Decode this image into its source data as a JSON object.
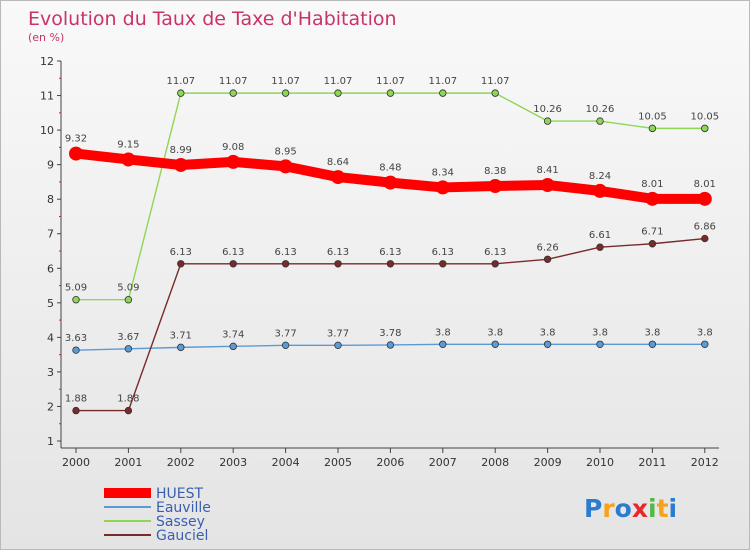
{
  "chart_data": {
    "type": "line",
    "title": "Evolution du Taux de Taxe d'Habitation",
    "subtitle": "(en %)",
    "xlabel": "",
    "ylabel": "",
    "ylim": [
      1,
      12
    ],
    "grid": false,
    "legend_position": "bottom-left",
    "categories": [
      "2000",
      "2001",
      "2002",
      "2003",
      "2004",
      "2005",
      "2006",
      "2007",
      "2008",
      "2009",
      "2010",
      "2011",
      "2012"
    ],
    "y_ticks": [
      1,
      2,
      3,
      4,
      5,
      6,
      7,
      8,
      9,
      10,
      11,
      12
    ],
    "series": [
      {
        "name": "HUEST",
        "color": "#ff0000",
        "values": [
          9.32,
          9.15,
          8.99,
          9.08,
          8.95,
          8.64,
          8.48,
          8.34,
          8.38,
          8.41,
          8.24,
          8.01,
          8.01
        ],
        "labels": [
          "9.32",
          "9.15",
          "8.99",
          "9.08",
          "8.95",
          "8.64",
          "8.48",
          "8.34",
          "8.38",
          "8.41",
          "8.24",
          "8.01",
          "8.01"
        ]
      },
      {
        "name": "Eauville",
        "color": "#5b9bd5",
        "values": [
          3.63,
          3.67,
          3.71,
          3.74,
          3.77,
          3.77,
          3.78,
          3.8,
          3.8,
          3.8,
          3.8,
          3.8,
          3.8
        ],
        "labels": [
          "3.63",
          "3.67",
          "3.71",
          "3.74",
          "3.77",
          "3.77",
          "3.78",
          "3.8",
          "3.8",
          "3.8",
          "3.8",
          "3.8",
          "3.8"
        ]
      },
      {
        "name": "Sassey",
        "color": "#8ed657",
        "values": [
          5.09,
          5.09,
          11.07,
          11.07,
          11.07,
          11.07,
          11.07,
          11.07,
          11.07,
          10.26,
          10.26,
          10.05,
          10.05
        ],
        "labels": [
          "5.09",
          "5.09",
          "11.07",
          "11.07",
          "11.07",
          "11.07",
          "11.07",
          "11.07",
          "11.07",
          "10.26",
          "10.26",
          "10.05",
          "10.05"
        ]
      },
      {
        "name": "Gauciel",
        "color": "#7a2a2a",
        "values": [
          1.88,
          1.88,
          6.13,
          6.13,
          6.13,
          6.13,
          6.13,
          6.13,
          6.13,
          6.26,
          6.61,
          6.71,
          6.86
        ],
        "labels": [
          "1.88",
          "1.88",
          "6.13",
          "6.13",
          "6.13",
          "6.13",
          "6.13",
          "6.13",
          "6.13",
          "6.26",
          "6.61",
          "6.71",
          "6.86"
        ]
      }
    ]
  },
  "branding": {
    "logo_text": "Proxiti",
    "letters": [
      "P",
      "r",
      "o",
      "x",
      "i",
      "t",
      "i"
    ],
    "letter_colors": [
      "#2b7bcf",
      "#f7a21b",
      "#2b7bcf",
      "#e8282b",
      "#52b947",
      "#f7a21b",
      "#2b7bcf"
    ]
  }
}
